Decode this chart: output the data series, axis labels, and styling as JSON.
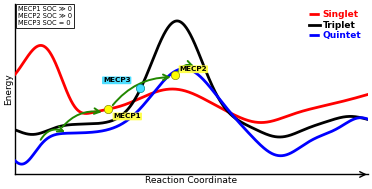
{
  "xlabel": "Reaction Coordinate",
  "ylabel": "Energy",
  "xlim": [
    0,
    10
  ],
  "ylim": [
    -1.8,
    4.8
  ],
  "background_color": "#ffffff",
  "singlet_color": "#ff0000",
  "triplet_color": "#000000",
  "quintet_color": "#0000ff",
  "arrow_color": "#228800",
  "mecp1_label": "MECP1",
  "mecp2_label": "MECP2",
  "mecp3_label": "MECP3",
  "mecp1_color": "#ffff00",
  "mecp2_color": "#ffff00",
  "mecp3_color": "#44ddff",
  "legend_labels": [
    "Singlet",
    "Triplet",
    "Quintet"
  ],
  "legend_colors": [
    "#ff0000",
    "#000000",
    "#0000ff"
  ],
  "annotation_lines": [
    "MECP1 SOC ≫ 0",
    "MECP2 SOC ≫ 0",
    "MECP3 SOC = 0"
  ],
  "mecp1_x": 2.65,
  "mecp1_y": 0.72,
  "mecp2_x": 4.55,
  "mecp2_y": 2.05,
  "mecp3_x": 3.55,
  "mecp3_y": 1.55
}
